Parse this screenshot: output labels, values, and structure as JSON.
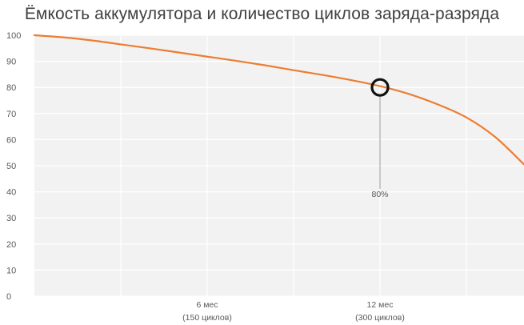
{
  "chart_data": {
    "type": "line",
    "title": "Ёмкость аккумулятора и количество циклов заряда-разряда",
    "xlabel": "",
    "ylabel": "",
    "ylim": [
      0,
      100
    ],
    "xlim": [
      0,
      17
    ],
    "yticks": [
      0,
      10,
      20,
      30,
      40,
      50,
      60,
      70,
      80,
      90,
      100
    ],
    "xticks": [
      {
        "value": 6,
        "line1": "6 мес",
        "line2": "(150 циклов)"
      },
      {
        "value": 12,
        "line1": "12 мес",
        "line2": "(300 циклов)"
      }
    ],
    "series": [
      {
        "color": "#ED7D31",
        "x": [
          0,
          1,
          2,
          3,
          4,
          5,
          6,
          7,
          8,
          9,
          10,
          11,
          12,
          13,
          14,
          15,
          16,
          17
        ],
        "y": [
          100,
          99.2,
          98,
          96.5,
          95,
          93.4,
          91.8,
          90.2,
          88.5,
          86.6,
          84.8,
          82.8,
          80.5,
          77.5,
          73.5,
          68.5,
          61,
          50.5
        ]
      }
    ],
    "annotations": [
      {
        "x": 12,
        "y": 80,
        "label": "80%",
        "label_y": 43
      }
    ],
    "grid": true
  }
}
